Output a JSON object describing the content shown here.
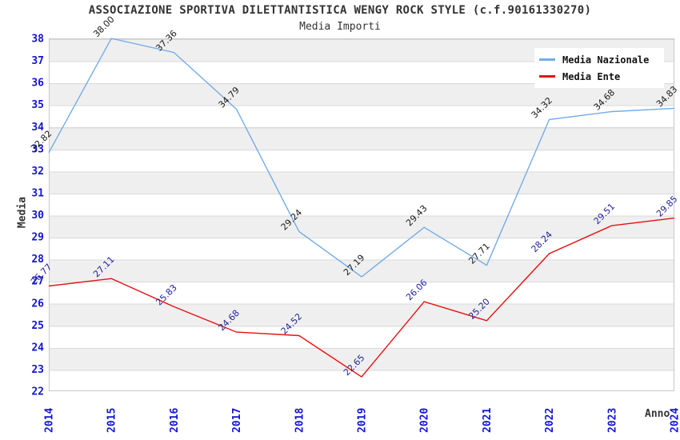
{
  "title": "ASSOCIAZIONE SPORTIVA DILETTANTISTICA WENGY ROCK STYLE (c.f.90161330270)",
  "subtitle": "Media Importi",
  "chart_data": {
    "type": "line",
    "x": [
      2014,
      2015,
      2016,
      2017,
      2018,
      2019,
      2020,
      2021,
      2022,
      2023,
      2024
    ],
    "xlabel": "Anno",
    "ylabel": "Media",
    "ylim": [
      22,
      38
    ],
    "ytick_step": 1,
    "grid": "horizontal-stripes",
    "legend_position": "top-right",
    "tick_color": "#1414d6",
    "series": [
      {
        "name": "Media Nazionale",
        "color": "#74ace6",
        "label_color": "#1a1a1a",
        "values": [
          32.82,
          38.0,
          37.36,
          34.79,
          29.24,
          27.19,
          29.43,
          27.71,
          34.32,
          34.68,
          34.83
        ]
      },
      {
        "name": "Media Ente",
        "color": "#e51212",
        "label_color": "#22229b",
        "values": [
          26.77,
          27.11,
          25.83,
          24.68,
          24.52,
          22.65,
          26.06,
          25.2,
          28.24,
          29.51,
          29.85
        ]
      }
    ]
  }
}
